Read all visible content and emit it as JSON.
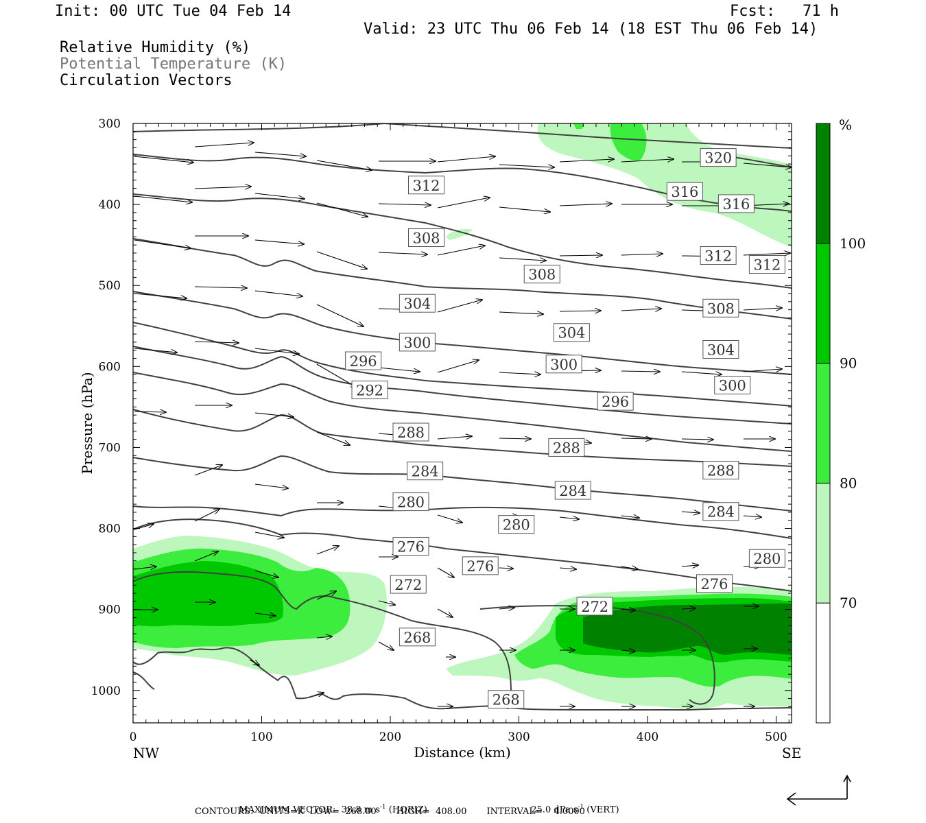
{
  "header": {
    "init": "Init: 00 UTC Tue 04 Feb 14",
    "fcst": "Fcst:   71 h",
    "valid": "Valid: 23 UTC Thu 06 Feb 14 (18 EST Thu 06 Feb 14)"
  },
  "legend_lines": [
    {
      "text": "Relative Humidity (%)",
      "color": "#000000"
    },
    {
      "text": "Potential Temperature (K)",
      "color": "#777777"
    },
    {
      "text": "Circulation Vectors",
      "color": "#000000"
    }
  ],
  "chart_data": {
    "type": "cross-section",
    "xlabel": "Distance (km)",
    "ylabel": "Pressure (hPa)",
    "xlim": [
      0,
      512
    ],
    "ylim": [
      1040,
      300
    ],
    "y_scale": "linear, inverted",
    "x_ticks": [
      "0",
      "100",
      "200",
      "300",
      "400",
      "500"
    ],
    "y_ticks": [
      "300",
      "400",
      "500",
      "600",
      "700",
      "800",
      "900",
      "1000"
    ],
    "x_end_labels": {
      "left": "NW",
      "right": "SE"
    },
    "colorbar": {
      "unit": "%",
      "labels": [
        "100",
        "90",
        "80",
        "70"
      ],
      "bands": [
        {
          "from": 60,
          "to": 70,
          "color": "#ffffff"
        },
        {
          "from": 70,
          "to": 80,
          "color": "#bdf7bd"
        },
        {
          "from": 80,
          "to": 90,
          "color": "#3ded3d"
        },
        {
          "from": 90,
          "to": 100,
          "color": "#00c800"
        },
        {
          "from": 100,
          "to": 110,
          "color": "#008200"
        }
      ]
    },
    "theta_contour_labels": [
      {
        "label": "320",
        "x": 455,
        "p": 342
      },
      {
        "label": "316",
        "x": 429,
        "p": 384
      },
      {
        "label": "316",
        "x": 469,
        "p": 399
      },
      {
        "label": "312",
        "x": 228,
        "p": 376
      },
      {
        "label": "312",
        "x": 455,
        "p": 463
      },
      {
        "label": "312",
        "x": 493,
        "p": 474
      },
      {
        "label": "308",
        "x": 228,
        "p": 441
      },
      {
        "label": "308",
        "x": 318,
        "p": 486
      },
      {
        "label": "308",
        "x": 457,
        "p": 528
      },
      {
        "label": "304",
        "x": 221,
        "p": 522
      },
      {
        "label": "304",
        "x": 341,
        "p": 558
      },
      {
        "label": "304",
        "x": 457,
        "p": 579
      },
      {
        "label": "300",
        "x": 221,
        "p": 570
      },
      {
        "label": "300",
        "x": 335,
        "p": 597
      },
      {
        "label": "300",
        "x": 466,
        "p": 623
      },
      {
        "label": "296",
        "x": 179,
        "p": 593
      },
      {
        "label": "296",
        "x": 375,
        "p": 643
      },
      {
        "label": "292",
        "x": 184,
        "p": 629
      },
      {
        "label": "288",
        "x": 216,
        "p": 681
      },
      {
        "label": "288",
        "x": 337,
        "p": 700
      },
      {
        "label": "288",
        "x": 457,
        "p": 728
      },
      {
        "label": "284",
        "x": 227,
        "p": 729
      },
      {
        "label": "284",
        "x": 342,
        "p": 753
      },
      {
        "label": "284",
        "x": 457,
        "p": 779
      },
      {
        "label": "280",
        "x": 216,
        "p": 767
      },
      {
        "label": "280",
        "x": 298,
        "p": 795
      },
      {
        "label": "280",
        "x": 493,
        "p": 837
      },
      {
        "label": "276",
        "x": 216,
        "p": 822
      },
      {
        "label": "276",
        "x": 270,
        "p": 846
      },
      {
        "label": "276",
        "x": 452,
        "p": 868
      },
      {
        "label": "272",
        "x": 214,
        "p": 869
      },
      {
        "label": "272",
        "x": 359,
        "p": 896
      },
      {
        "label": "268",
        "x": 221,
        "p": 934
      },
      {
        "label": "268",
        "x": 290,
        "p": 1011
      }
    ]
  },
  "footer": {
    "max_vector": "MAXIMUM VECTOR:  38.8 m s",
    "exp1": "-1",
    "horiz": " (HORIZ)",
    "vert_val": "25.0 dPa s",
    "exp2": "-1",
    "vert": " (VERT)",
    "contours": "CONTOURS:  UNITS=K  LOW=  268.00       HIGH=  408.00       INTERVAL=    4.0000"
  }
}
